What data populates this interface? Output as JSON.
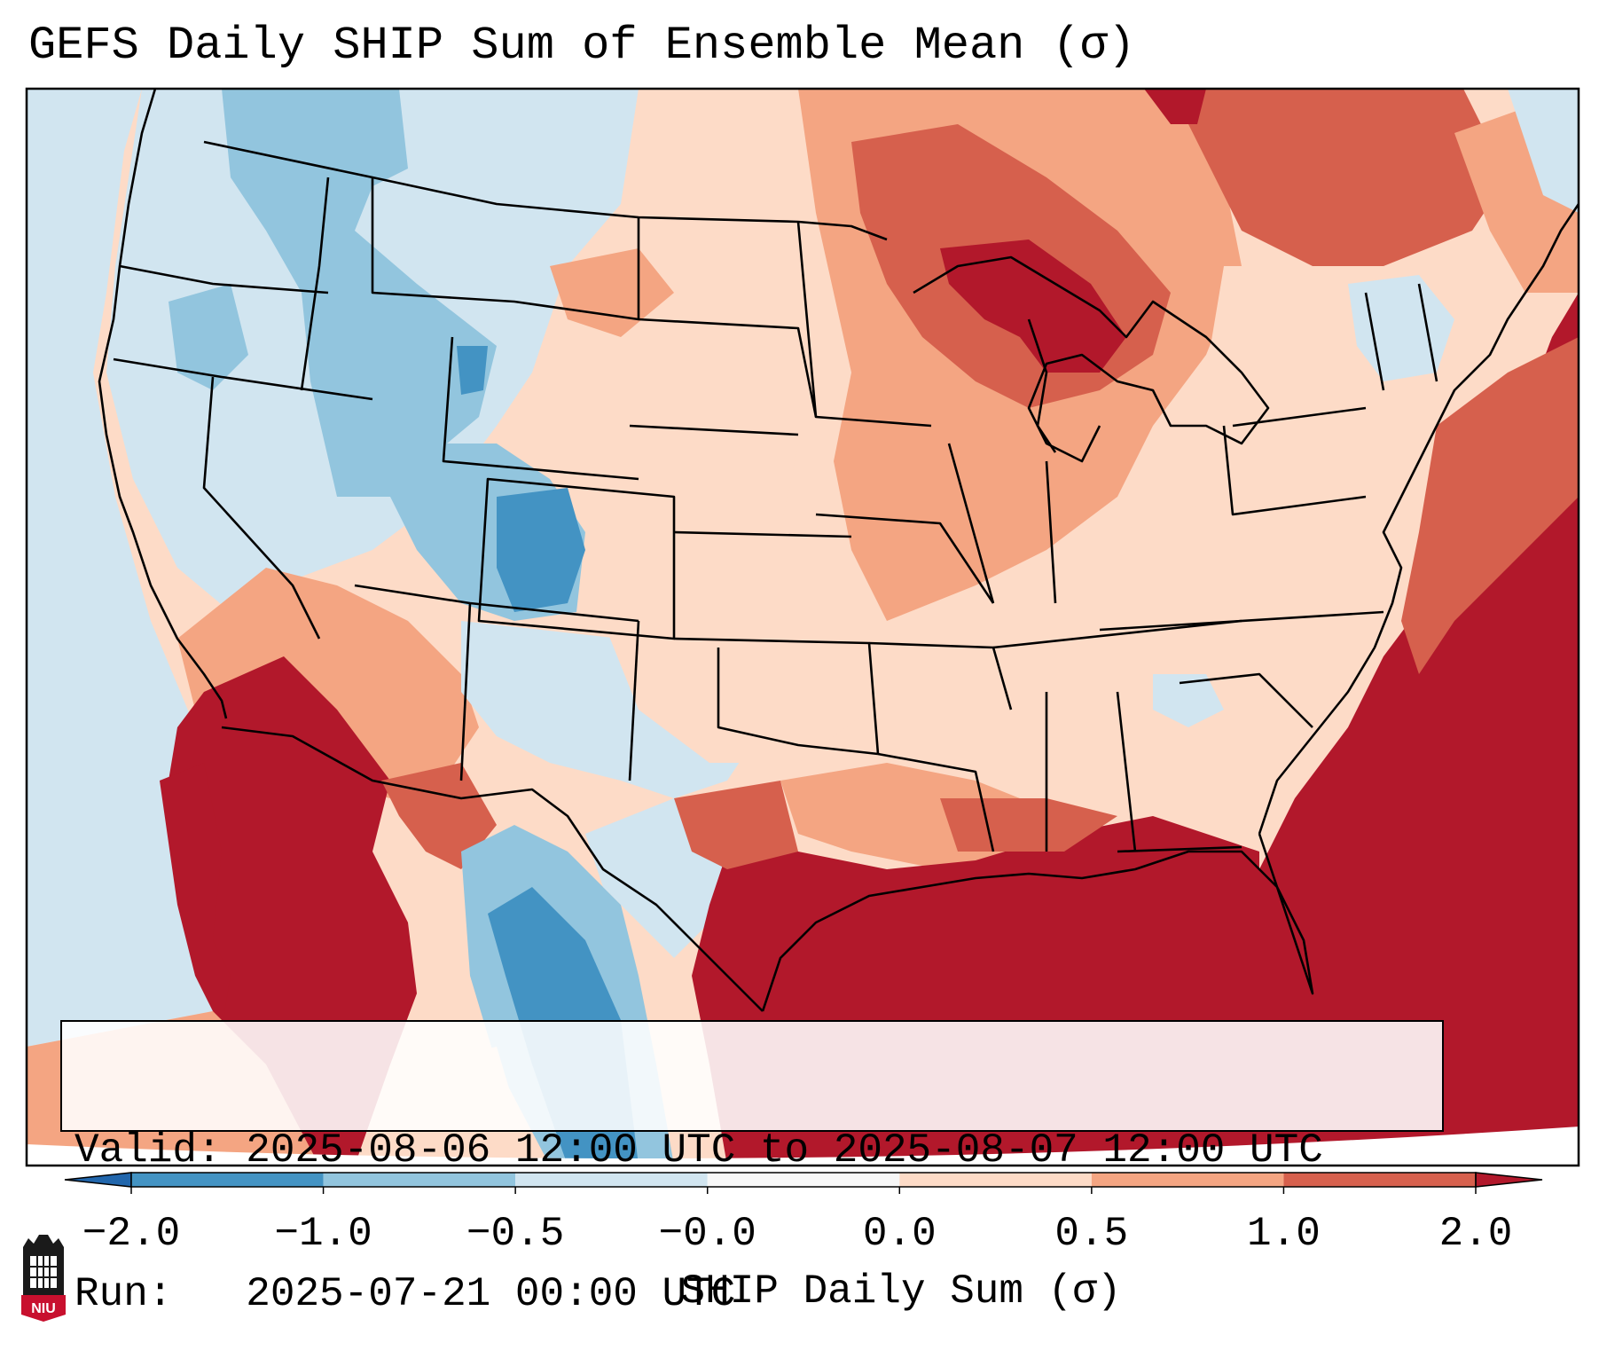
{
  "title": "GEFS Daily SHIP Sum of Ensemble Mean (σ)",
  "info": {
    "valid_line": "Valid: 2025-08-06 12:00 UTC to 2025-08-07 12:00 UTC",
    "run_line": "Run:   2025-07-21 00:00 UTC"
  },
  "colorbar": {
    "label": "SHIP Daily Sum (σ)",
    "ticks": [
      "−2.0",
      "−1.0",
      "−0.5",
      "−0.0",
      "0.0",
      "0.5",
      "1.0",
      "2.0"
    ],
    "colors": [
      "#2166ac",
      "#4393c3",
      "#92c5de",
      "#d1e5f0",
      "#f7f7f7",
      "#fddbc7",
      "#f4a582",
      "#d6604d",
      "#b2182b"
    ],
    "extend": "both"
  },
  "map": {
    "region": "Contiguous United States",
    "field": "SHIP daily sum anomaly",
    "ocean_west_color": "#d1e5f0",
    "gulf_atlantic_color": "#b2182b"
  },
  "logo": {
    "text": "NIU",
    "color": "#c8102e"
  }
}
